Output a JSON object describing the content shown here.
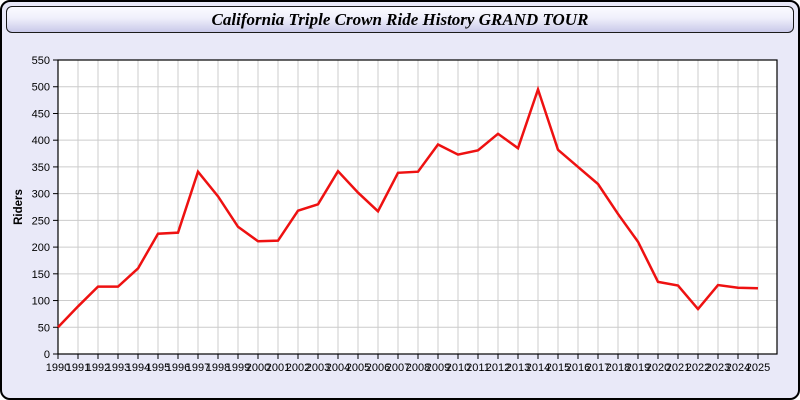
{
  "header": {
    "title": "California Triple Crown Ride History GRAND TOUR"
  },
  "colors": {
    "widget_background": "#e9e9f8",
    "widget_border": "#000000",
    "titlebar_gradient_top": "#fbfbff",
    "titlebar_gradient_bottom": "#c9c9e9",
    "line": "#ee1111",
    "grid": "#cccccc",
    "plot_background": "#ffffff",
    "plot_border": "#000000"
  },
  "chart_data": {
    "type": "line",
    "title": "California Triple Crown Ride History GRAND TOUR",
    "xlabel": "",
    "ylabel": "Riders",
    "x": [
      1990,
      1991,
      1992,
      1993,
      1994,
      1995,
      1996,
      1997,
      1998,
      1999,
      2000,
      2001,
      2002,
      2003,
      2004,
      2005,
      2006,
      2007,
      2008,
      2009,
      2010,
      2011,
      2012,
      2013,
      2014,
      2015,
      2016,
      2017,
      2018,
      2019,
      2020,
      2021,
      2022,
      2023,
      2024,
      2025
    ],
    "series": [
      {
        "name": "Riders",
        "values": [
          50,
          89,
          126,
          126,
          160,
          225,
          227,
          341,
          295,
          238,
          211,
          212,
          268,
          280,
          342,
          302,
          267,
          339,
          341,
          392,
          373,
          381,
          412,
          385,
          495,
          382,
          350,
          318,
          262,
          210,
          135,
          128,
          84,
          129,
          124,
          123
        ]
      }
    ],
    "ylim": [
      0,
      550
    ],
    "ytick_step": 50,
    "grid": true,
    "legend_position": "none",
    "line_color": "#ee1111",
    "grid_color": "#cccccc",
    "plot_bg": "#ffffff"
  }
}
